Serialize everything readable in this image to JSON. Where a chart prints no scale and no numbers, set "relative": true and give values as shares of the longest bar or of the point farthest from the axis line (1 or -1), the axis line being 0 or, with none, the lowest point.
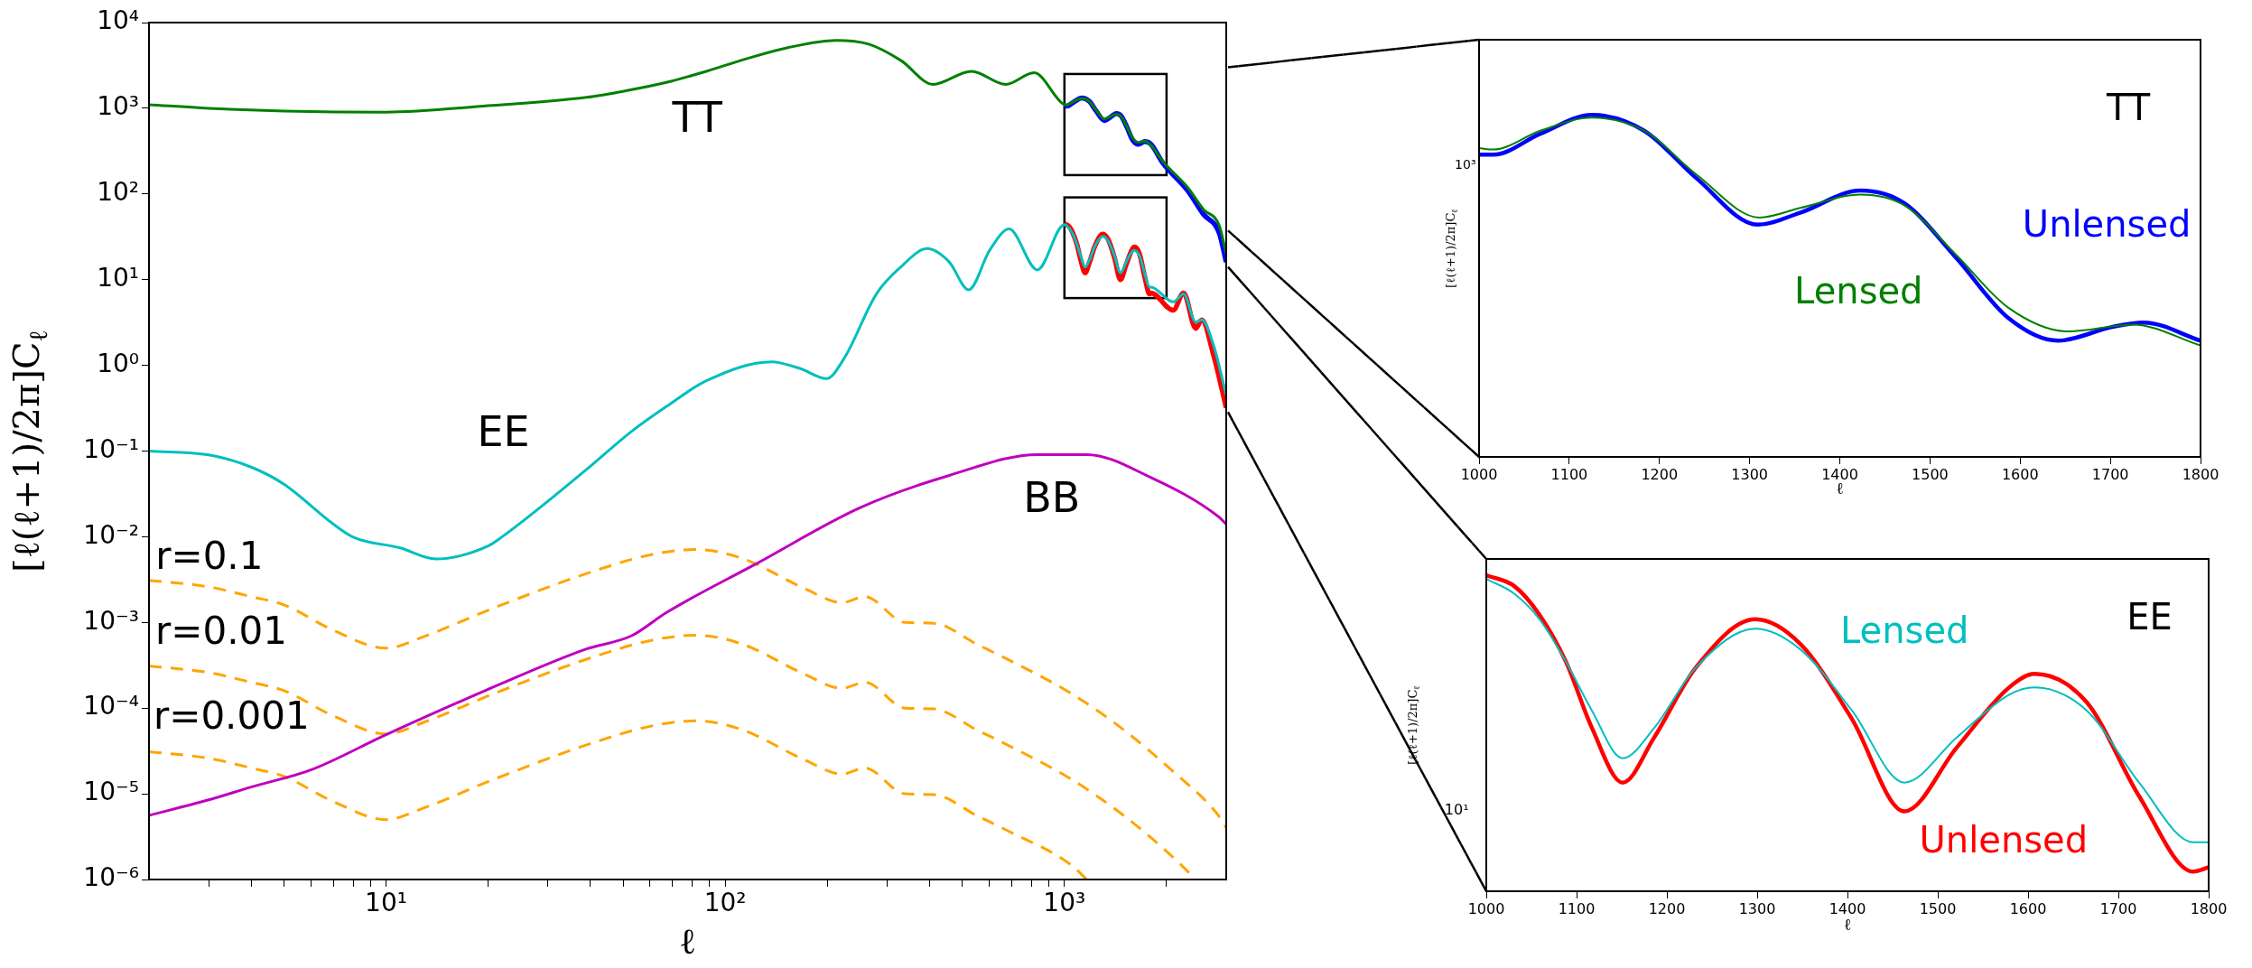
{
  "chart_data": [
    {
      "type": "line",
      "xlabel": "ℓ",
      "ylabel": "[ℓ(ℓ+1)/2π]C$_{ℓ}$",
      "log": "xy",
      "xlim": [
        2,
        3000
      ],
      "ylim": [
        1e-06,
        10000
      ],
      "xticks": [
        {
          "value": 3,
          "label": null
        },
        {
          "value": 4,
          "label": null
        },
        {
          "value": 5,
          "label": null
        },
        {
          "value": 6,
          "label": null
        },
        {
          "value": 7,
          "label": null
        },
        {
          "value": 8,
          "label": null
        },
        {
          "value": 9,
          "label": null
        },
        {
          "value": 10,
          "label": "10¹"
        },
        {
          "value": 20,
          "label": null
        },
        {
          "value": 30,
          "label": null
        },
        {
          "value": 40,
          "label": null
        },
        {
          "value": 50,
          "label": null
        },
        {
          "value": 60,
          "label": null
        },
        {
          "value": 70,
          "label": null
        },
        {
          "value": 80,
          "label": null
        },
        {
          "value": 90,
          "label": null
        },
        {
          "value": 100,
          "label": "10²"
        },
        {
          "value": 200,
          "label": null
        },
        {
          "value": 300,
          "label": null
        },
        {
          "value": 400,
          "label": null
        },
        {
          "value": 500,
          "label": null
        },
        {
          "value": 600,
          "label": null
        },
        {
          "value": 700,
          "label": null
        },
        {
          "value": 800,
          "label": null
        },
        {
          "value": 900,
          "label": null
        },
        {
          "value": 1000,
          "label": "10³"
        },
        {
          "value": 2000,
          "label": null
        }
      ],
      "yticks": [
        {
          "value": 1e-06,
          "label": "10⁻⁶"
        },
        {
          "value": 1e-05,
          "label": "10⁻⁵"
        },
        {
          "value": 0.0001,
          "label": "10⁻⁴"
        },
        {
          "value": 0.001,
          "label": "10⁻³"
        },
        {
          "value": 0.01,
          "label": "10⁻²"
        },
        {
          "value": 0.1,
          "label": "10⁻¹"
        },
        {
          "value": 1,
          "label": "10⁰"
        },
        {
          "value": 10,
          "label": "10¹"
        },
        {
          "value": 100,
          "label": "10²"
        },
        {
          "value": 1000,
          "label": "10³"
        },
        {
          "value": 10000,
          "label": "10⁴"
        }
      ],
      "series": [
        {
          "color": "#008000",
          "x": [
            2,
            3,
            5,
            10,
            20,
            39,
            51,
            67,
            88,
            116,
            153,
            212,
            265,
            330,
            410,
            532,
            672,
            814,
            1000,
            1016,
            1068,
            1125,
            1183,
            1241,
            1311,
            1356,
            1423,
            1472,
            1529,
            1587,
            1653,
            1725,
            1800,
            1950,
            2306,
            2570,
            2860,
            3000
          ],
          "values": [
            1100,
            1000,
            930,
            900,
            1070,
            1340,
            1600,
            2000,
            2700,
            3800,
            5100,
            6200,
            5600,
            3600,
            1900,
            2700,
            1900,
            2600,
            1100,
            1090,
            1210,
            1300,
            1210,
            950,
            750,
            790,
            850,
            800,
            610,
            455,
            400,
            415,
            370,
            240,
            120,
            66,
            43,
            20
          ]
        },
        {
          "color": "#0000ff",
          "x": [
            1000,
            1016,
            1068,
            1125,
            1183,
            1241,
            1311,
            1356,
            1423,
            1472,
            1529,
            1587,
            1653,
            1725,
            1800,
            1950,
            2306,
            2570,
            2860,
            3000
          ],
          "values": [
            1060,
            1060,
            1190,
            1320,
            1210,
            930,
            720,
            770,
            870,
            810,
            600,
            430,
            380,
            410,
            380,
            230,
            110,
            58,
            35,
            16
          ]
        },
        {
          "color": "#00bfbf",
          "x": [
            2,
            3,
            4,
            5,
            7,
            8,
            11,
            14,
            20,
            22,
            39,
            53,
            67,
            88,
            137,
            166,
            199,
            224,
            279,
            329,
            394,
            458,
            522,
            602,
            687,
            832,
            1000,
            1031,
            1059,
            1088,
            1117,
            1151,
            1186,
            1232,
            1298,
            1348,
            1405,
            1463,
            1521,
            1579,
            1607,
            1665,
            1723,
            1783,
            1800,
            2094,
            2245,
            2440,
            2540,
            2755,
            3000
          ],
          "values": [
            0.1,
            0.09,
            0.065,
            0.041,
            0.014,
            0.0099,
            0.0074,
            0.0055,
            0.0078,
            0.01,
            0.061,
            0.17,
            0.33,
            0.66,
            1.1,
            0.92,
            0.7,
            1.2,
            6.8,
            14,
            23,
            16,
            7.6,
            22,
            39,
            13,
            44,
            40,
            34,
            26,
            19,
            14,
            17,
            25,
            32,
            28,
            19,
            12,
            16,
            21,
            22,
            19,
            12,
            8.2,
            8.2,
            5.5,
            6.8,
            3.2,
            3.4,
            1.7,
            0.45
          ]
        },
        {
          "color": "#ff0000",
          "x": [
            1000,
            1031,
            1059,
            1088,
            1117,
            1151,
            1186,
            1232,
            1298,
            1348,
            1405,
            1463,
            1521,
            1579,
            1607,
            1665,
            1723,
            1783,
            1800,
            2094,
            2245,
            2440,
            2540,
            2755,
            3000
          ],
          "values": [
            45,
            42,
            35,
            26,
            17,
            12,
            16,
            25,
            34,
            29,
            18,
            10,
            15,
            22,
            24,
            20,
            11,
            6.8,
            7.0,
            4.4,
            7.0,
            2.7,
            3.4,
            1.3,
            0.32
          ]
        },
        {
          "color": "#bf00bf",
          "x": [
            2,
            3,
            4,
            6,
            10,
            21,
            39,
            53,
            67,
            123,
            251,
            458,
            834,
            1164,
            1800,
            2854,
            3000
          ],
          "values": [
            5.6e-06,
            8.5e-06,
            1.2e-05,
            1.9e-05,
            4.9e-05,
            0.00018,
            0.00049,
            0.0007,
            0.0013,
            0.0048,
            0.022,
            0.052,
            0.091,
            0.091,
            0.049,
            0.017,
            0.014
          ]
        },
        {
          "color": "#ffa500",
          "line_style": "dashed",
          "x": [
            2,
            3,
            4,
            5,
            7,
            10,
            13,
            21,
            42,
            62,
            82,
            112,
            171,
            221,
            258,
            339,
            411,
            555,
            672,
            1042,
            1494,
            2066,
            2854,
            3000
          ],
          "values": [
            0.0031,
            0.0026,
            0.002,
            0.0016,
            0.00081,
            0.0005,
            0.00069,
            0.0015,
            0.0041,
            0.0063,
            0.0071,
            0.0056,
            0.0025,
            0.0017,
            0.002,
            0.001,
            0.00098,
            0.00055,
            0.00038,
            0.00015,
            5.6e-05,
            1.9e-05,
            5.5e-06,
            4e-06
          ]
        },
        {
          "color": "#ffa500",
          "line_style": "dashed",
          "x": [
            2,
            3,
            4,
            5,
            7,
            10,
            13,
            21,
            42,
            62,
            82,
            112,
            171,
            221,
            258,
            339,
            411,
            555,
            672,
            1042,
            1494,
            2066,
            2440
          ],
          "values": [
            0.00031,
            0.00026,
            0.0002,
            0.00016,
            8.1e-05,
            5e-05,
            6.9e-05,
            0.00015,
            0.00041,
            0.00063,
            0.00071,
            0.00056,
            0.00025,
            0.00017,
            0.0002,
            0.0001,
            9.8e-05,
            5.5e-05,
            3.8e-05,
            1.5e-05,
            5.6e-06,
            1.9e-06,
            1e-06
          ]
        },
        {
          "color": "#ffa500",
          "line_style": "dashed",
          "x": [
            2,
            3,
            4,
            5,
            7,
            10,
            13,
            21,
            42,
            62,
            82,
            112,
            171,
            221,
            258,
            339,
            411,
            555,
            672,
            1042,
            1164
          ],
          "values": [
            3.1e-05,
            2.6e-05,
            2e-05,
            1.6e-05,
            8.1e-06,
            5e-06,
            6.9e-06,
            1.5e-05,
            4.1e-05,
            6.3e-05,
            7.1e-05,
            5.6e-05,
            2.5e-05,
            1.7e-05,
            2e-05,
            1e-05,
            9.8e-06,
            5.5e-06,
            3.8e-06,
            1.5e-06,
            1e-06
          ]
        }
      ],
      "annotations": [
        "TT",
        "EE",
        "BB",
        "r=0.1",
        "r=0.01",
        "r=0.001"
      ]
    },
    {
      "type": "line",
      "xlabel": "ℓ",
      "ylabel": "[ℓ(ℓ+1)/2π]C$_{ℓ}$",
      "relative": true,
      "xlim": [
        1000,
        1800
      ],
      "xticks": [
        1000,
        1100,
        1200,
        1300,
        1400,
        1500,
        1600,
        1700,
        1800
      ],
      "series": [
        {
          "name": "Lensed",
          "color": "#008000",
          "x": [
            1000,
            1016,
            1068,
            1125,
            1183,
            1241,
            1311,
            1356,
            1423,
            1472,
            1529,
            1587,
            1653,
            1725,
            1800
          ],
          "values": [
            0.903,
            0.899,
            0.954,
            0.992,
            0.954,
            0.826,
            0.7,
            0.728,
            0.767,
            0.735,
            0.591,
            0.436,
            0.367,
            0.387,
            0.326
          ]
        },
        {
          "name": "Unlensed",
          "color": "#0000ff",
          "x": [
            1000,
            1016,
            1068,
            1125,
            1183,
            1241,
            1309,
            1356,
            1423,
            1472,
            1529,
            1587,
            1642,
            1702,
            1737,
            1800
          ],
          "values": [
            0.884,
            0.884,
            0.945,
            1.0,
            0.954,
            0.815,
            0.679,
            0.714,
            0.779,
            0.741,
            0.582,
            0.406,
            0.34,
            0.38,
            0.393,
            0.34
          ]
        }
      ],
      "annotations": [
        "TT",
        "10³"
      ]
    },
    {
      "type": "line",
      "xlabel": "ℓ",
      "ylabel": "[ℓ(ℓ+1)/2π]C$_{ℓ}$",
      "relative": true,
      "xlim": [
        1000,
        1800
      ],
      "xticks": [
        1000,
        1100,
        1200,
        1300,
        1400,
        1500,
        1600,
        1700,
        1800
      ],
      "series": [
        {
          "name": "Lensed",
          "color": "#00bfbf",
          "x": [
            1000,
            1031,
            1059,
            1088,
            1117,
            1151,
            1186,
            1232,
            1298,
            1348,
            1405,
            1463,
            1521,
            1579,
            1607,
            1665,
            1723,
            1783,
            1800
          ],
          "values": [
            0.989,
            0.942,
            0.861,
            0.728,
            0.572,
            0.421,
            0.517,
            0.708,
            0.831,
            0.765,
            0.572,
            0.344,
            0.487,
            0.622,
            0.645,
            0.572,
            0.344,
            0.155,
            0.155
          ]
        },
        {
          "name": "Unlensed",
          "color": "#ff0000",
          "x": [
            1000,
            1031,
            1059,
            1088,
            1117,
            1151,
            1186,
            1232,
            1298,
            1348,
            1405,
            1463,
            1521,
            1579,
            1607,
            1665,
            1723,
            1783,
            1800
          ],
          "values": [
            1.0,
            0.966,
            0.875,
            0.728,
            0.517,
            0.344,
            0.487,
            0.708,
            0.861,
            0.782,
            0.545,
            0.253,
            0.455,
            0.645,
            0.688,
            0.598,
            0.301,
            0.062,
            0.076
          ]
        }
      ],
      "annotations": [
        "EE",
        "10¹"
      ]
    }
  ]
}
